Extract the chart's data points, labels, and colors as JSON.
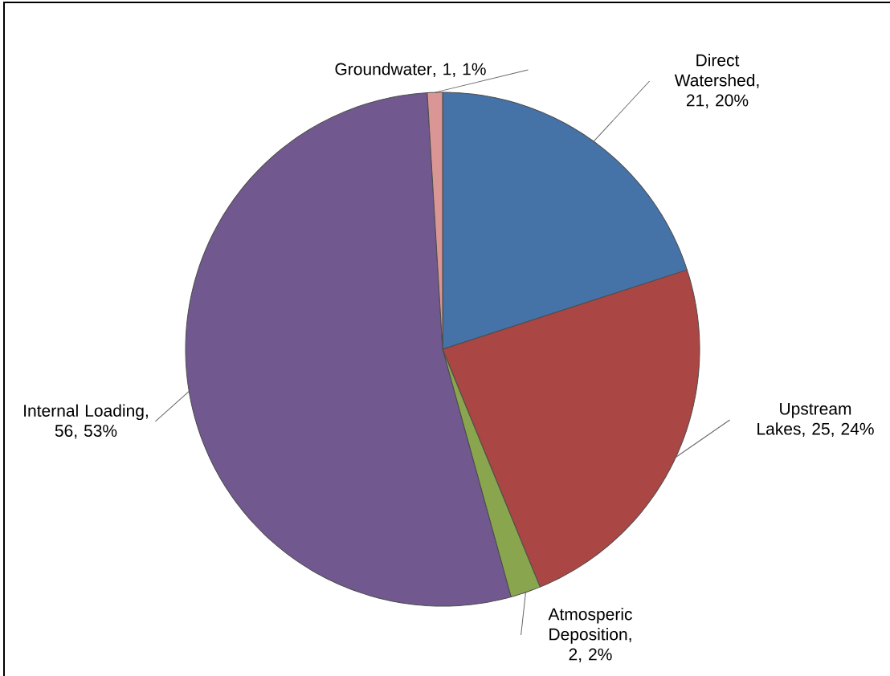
{
  "chart_data": {
    "type": "pie",
    "categories": [
      "Direct Watershed",
      "Upstream Lakes",
      "Atmosperic Deposition",
      "Internal Loading",
      "Groundwater"
    ],
    "values": [
      21,
      25,
      2,
      56,
      1
    ],
    "value_labels": [
      ", 21, 20%",
      ", 25, 24%",
      ", 2, 2%",
      ", 56, 53%",
      ", 1, 1%"
    ],
    "colors": [
      "#4572a7",
      "#aa4643",
      "#89a54e",
      "#71588f",
      "#d99694"
    ]
  }
}
